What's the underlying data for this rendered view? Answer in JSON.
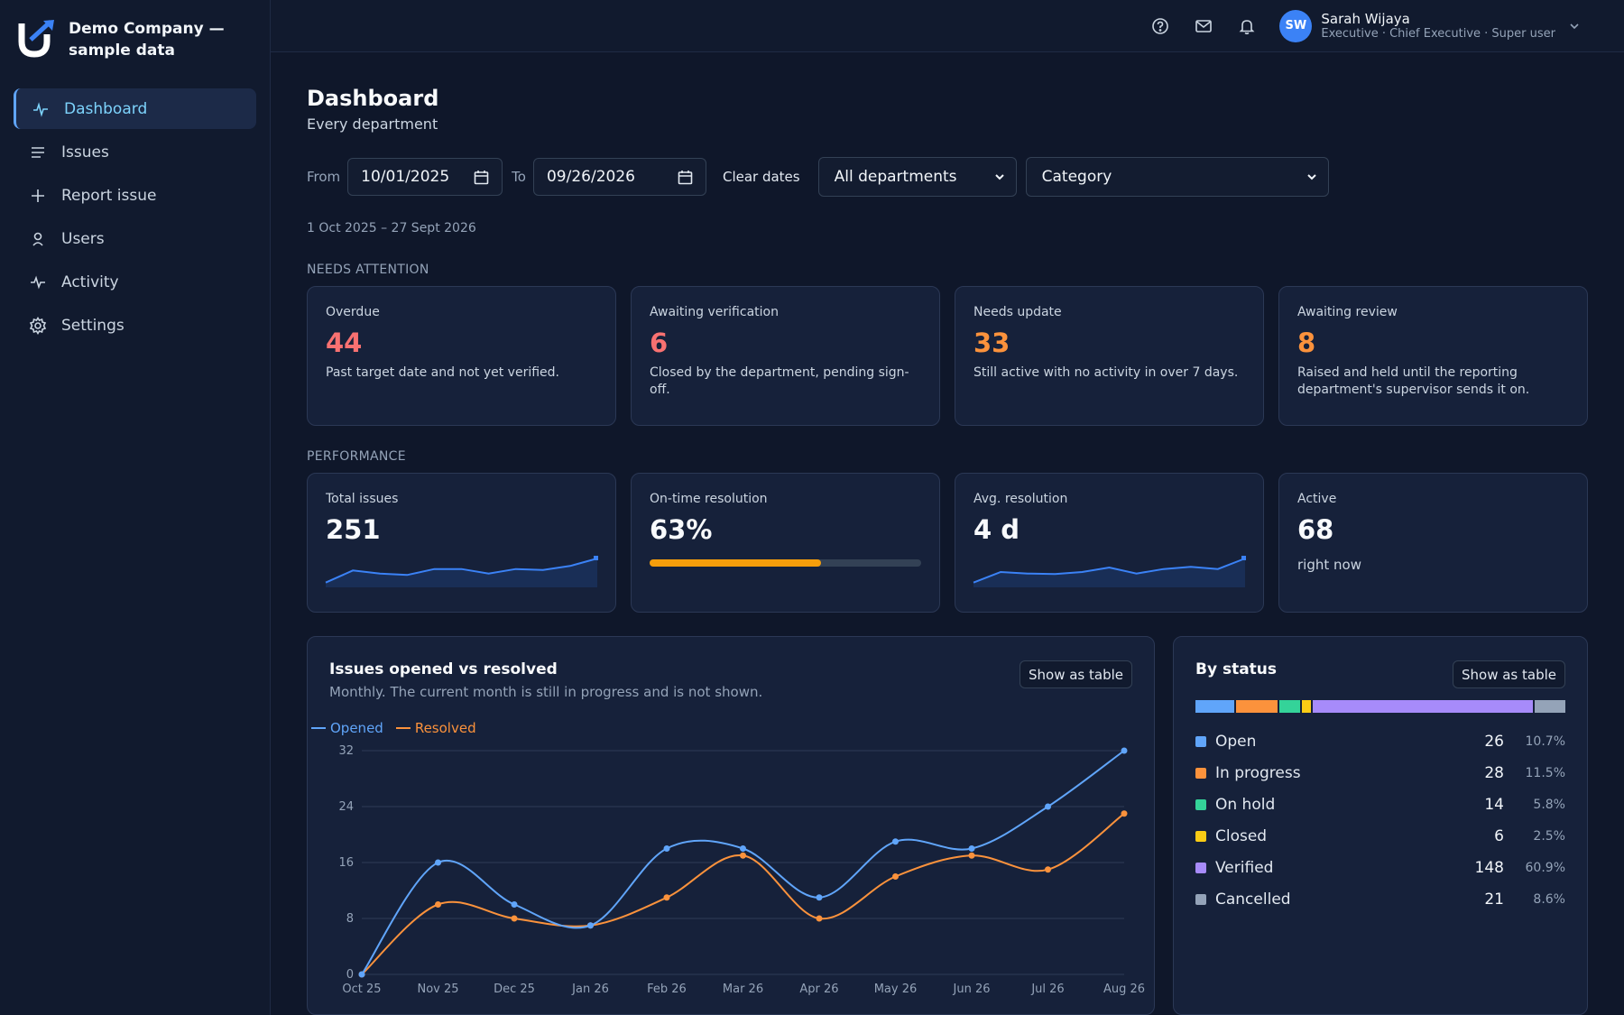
{
  "brand": {
    "name": "Demo Company — sample data"
  },
  "sidebar": {
    "items": [
      {
        "label": "Dashboard",
        "icon": "pulse-icon",
        "active": true
      },
      {
        "label": "Issues",
        "icon": "list-icon"
      },
      {
        "label": "Report issue",
        "icon": "plus-icon"
      },
      {
        "label": "Users",
        "icon": "user-icon"
      },
      {
        "label": "Activity",
        "icon": "activity-icon"
      },
      {
        "label": "Settings",
        "icon": "gear-icon"
      }
    ]
  },
  "topbar": {
    "user": {
      "initials": "SW",
      "name": "Sarah Wijaya",
      "role": "Executive · Chief Executive · Super user"
    }
  },
  "page": {
    "title": "Dashboard",
    "subtitle": "Every department"
  },
  "filters": {
    "from_label": "From",
    "from_value": "10/01/2025",
    "to_label": "To",
    "to_value": "09/26/2026",
    "clear_label": "Clear dates",
    "department": "All departments",
    "category": "Category"
  },
  "range_text": "1 Oct 2025 – 27 Sept 2026",
  "needs_attention": {
    "label": "NEEDS ATTENTION",
    "cards": [
      {
        "label": "Overdue",
        "value": "44",
        "desc": "Past target date and not yet verified.",
        "color": "#f87171"
      },
      {
        "label": "Awaiting verification",
        "value": "6",
        "desc": "Closed by the department, pending sign-off.",
        "color": "#f87171"
      },
      {
        "label": "Needs update",
        "value": "33",
        "desc": "Still active with no activity in over 7 days.",
        "color": "#fb923c"
      },
      {
        "label": "Awaiting review",
        "value": "8",
        "desc": "Raised and held until the reporting department's supervisor sends it on.",
        "color": "#fb923c"
      }
    ]
  },
  "performance": {
    "label": "PERFORMANCE",
    "total": {
      "label": "Total issues",
      "value": "251",
      "spark": [
        1,
        5,
        4,
        3.5,
        5.5,
        5.5,
        4,
        5.5,
        5.2,
        6.5,
        9
      ]
    },
    "ontime": {
      "label": "On-time resolution",
      "value": "63%",
      "progress": 0.63
    },
    "avg": {
      "label": "Avg. resolution",
      "value": "4 d",
      "spark": [
        1,
        4.5,
        4,
        3.8,
        4.5,
        6,
        4,
        5.5,
        6.2,
        5.5,
        9
      ]
    },
    "active": {
      "label": "Active",
      "value": "68",
      "desc": "right now"
    }
  },
  "trend": {
    "title": "Issues opened vs resolved",
    "subtitle": "Monthly. The current month is still in progress and is not shown.",
    "table_button": "Show as table"
  },
  "status": {
    "title": "By status",
    "table_button": "Show as table",
    "items": [
      {
        "name": "Open",
        "count": "26",
        "pct": "10.7%",
        "color": "#60a5fa",
        "share": 10.7
      },
      {
        "name": "In progress",
        "count": "28",
        "pct": "11.5%",
        "color": "#fb923c",
        "share": 11.5
      },
      {
        "name": "On hold",
        "count": "14",
        "pct": "5.8%",
        "color": "#34d399",
        "share": 5.8
      },
      {
        "name": "Closed",
        "count": "6",
        "pct": "2.5%",
        "color": "#facc15",
        "share": 2.5
      },
      {
        "name": "Verified",
        "count": "148",
        "pct": "60.9%",
        "color": "#a78bfa",
        "share": 60.9
      },
      {
        "name": "Cancelled",
        "count": "21",
        "pct": "8.6%",
        "color": "#94a3b8",
        "share": 8.6
      }
    ]
  },
  "chart_data": {
    "type": "line",
    "title": "Issues opened vs resolved",
    "categories": [
      "Oct 25",
      "Nov 25",
      "Dec 25",
      "Jan 26",
      "Feb 26",
      "Mar 26",
      "Apr 26",
      "May 26",
      "Jun 26",
      "Jul 26",
      "Aug 26"
    ],
    "series": [
      {
        "name": "Opened",
        "color": "#60a5fa",
        "values": [
          0,
          16,
          10,
          7,
          18,
          18,
          11,
          19,
          18,
          24,
          32
        ]
      },
      {
        "name": "Resolved",
        "color": "#fb923c",
        "values": [
          0,
          10,
          8,
          7,
          11,
          17,
          8,
          14,
          17,
          15,
          23
        ]
      }
    ],
    "yticks": [
      0,
      8,
      16,
      24,
      32
    ],
    "ylim": [
      0,
      32
    ],
    "grid": true,
    "legend": "top-left"
  }
}
